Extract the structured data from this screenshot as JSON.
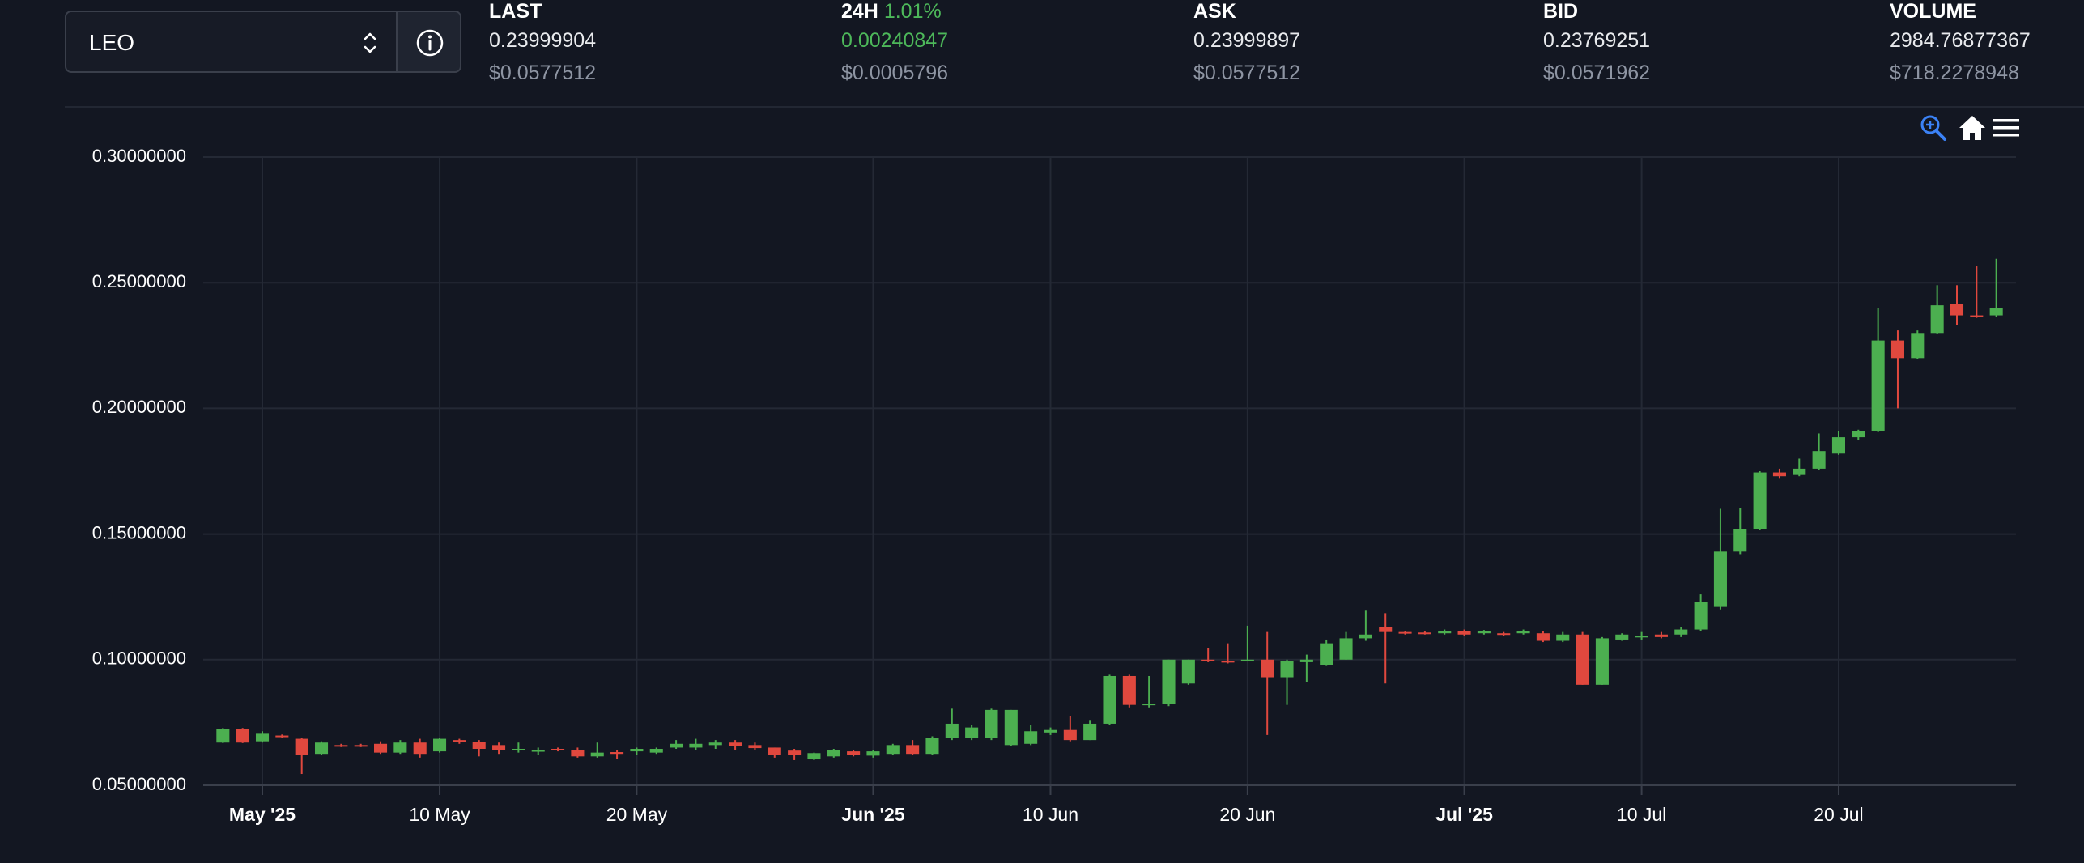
{
  "header": {
    "symbol": "LEO",
    "stats": [
      {
        "label": "LAST",
        "value": "0.23999904",
        "usd": "$0.0577512"
      },
      {
        "label": "24H",
        "change": "1.01%",
        "value": "0.00240847",
        "usd": "$0.0005796"
      },
      {
        "label": "ASK",
        "value": "0.23999897",
        "usd": "$0.0577512"
      },
      {
        "label": "BID",
        "value": "0.23769251",
        "usd": "$0.0571962"
      },
      {
        "label": "VOLUME",
        "value": "2984.76877367",
        "usd": "$718.2278948"
      }
    ]
  },
  "chart_data": {
    "type": "candlestick",
    "x": [
      "2025-04-29",
      "2025-04-30",
      "2025-05-01",
      "2025-05-02",
      "2025-05-03",
      "2025-05-04",
      "2025-05-05",
      "2025-05-06",
      "2025-05-07",
      "2025-05-08",
      "2025-05-09",
      "2025-05-10",
      "2025-05-11",
      "2025-05-12",
      "2025-05-13",
      "2025-05-14",
      "2025-05-15",
      "2025-05-16",
      "2025-05-17",
      "2025-05-18",
      "2025-05-19",
      "2025-05-20",
      "2025-05-21",
      "2025-05-22",
      "2025-05-23",
      "2025-05-24",
      "2025-05-25",
      "2025-05-26",
      "2025-05-27",
      "2025-05-28",
      "2025-05-29",
      "2025-05-30",
      "2025-05-31",
      "2025-06-01",
      "2025-06-02",
      "2025-06-03",
      "2025-06-04",
      "2025-06-05",
      "2025-06-06",
      "2025-06-07",
      "2025-06-08",
      "2025-06-09",
      "2025-06-10",
      "2025-06-11",
      "2025-06-12",
      "2025-06-13",
      "2025-06-14",
      "2025-06-15",
      "2025-06-16",
      "2025-06-17",
      "2025-06-18",
      "2025-06-19",
      "2025-06-20",
      "2025-06-21",
      "2025-06-22",
      "2025-06-23",
      "2025-06-24",
      "2025-06-25",
      "2025-06-26",
      "2025-06-27",
      "2025-06-28",
      "2025-06-29",
      "2025-06-30",
      "2025-07-01",
      "2025-07-02",
      "2025-07-03",
      "2025-07-04",
      "2025-07-05",
      "2025-07-06",
      "2025-07-07",
      "2025-07-08",
      "2025-07-09",
      "2025-07-10",
      "2025-07-11",
      "2025-07-12",
      "2025-07-13",
      "2025-07-14",
      "2025-07-15",
      "2025-07-16",
      "2025-07-17",
      "2025-07-18",
      "2025-07-19",
      "2025-07-20",
      "2025-07-21",
      "2025-07-22",
      "2025-07-23",
      "2025-07-24",
      "2025-07-25",
      "2025-07-26",
      "2025-07-27",
      "2025-07-28"
    ],
    "open": [
      0.067,
      0.0725,
      0.0675,
      0.0698,
      0.0685,
      0.0625,
      0.066,
      0.066,
      0.0665,
      0.063,
      0.067,
      0.0635,
      0.068,
      0.0672,
      0.066,
      0.064,
      0.0635,
      0.0645,
      0.064,
      0.0615,
      0.0632,
      0.0635,
      0.063,
      0.065,
      0.065,
      0.066,
      0.067,
      0.066,
      0.065,
      0.0638,
      0.0603,
      0.0615,
      0.0635,
      0.0618,
      0.0625,
      0.066,
      0.0625,
      0.069,
      0.069,
      0.069,
      0.066,
      0.0665,
      0.071,
      0.072,
      0.068,
      0.0745,
      0.0935,
      0.082,
      0.0825,
      0.0905,
      0.1,
      0.0995,
      0.0995,
      0.1,
      0.093,
      0.099,
      0.098,
      0.1,
      0.1085,
      0.113,
      0.111,
      0.1108,
      0.1105,
      0.1115,
      0.1105,
      0.1105,
      0.1105,
      0.1105,
      0.1075,
      0.11,
      0.09,
      0.108,
      0.109,
      0.11,
      0.11,
      0.112,
      0.121,
      0.143,
      0.152,
      0.1745,
      0.1735,
      0.176,
      0.182,
      0.1885,
      0.191,
      0.227,
      0.22,
      0.23,
      0.2415,
      0.237,
      0.237
    ],
    "high": [
      0.0728,
      0.0728,
      0.0715,
      0.0702,
      0.069,
      0.0675,
      0.0665,
      0.0665,
      0.0675,
      0.068,
      0.0685,
      0.069,
      0.0685,
      0.068,
      0.067,
      0.067,
      0.065,
      0.065,
      0.065,
      0.067,
      0.064,
      0.065,
      0.065,
      0.068,
      0.0685,
      0.068,
      0.068,
      0.067,
      0.065,
      0.0645,
      0.063,
      0.0645,
      0.064,
      0.064,
      0.0665,
      0.068,
      0.0695,
      0.0805,
      0.074,
      0.0805,
      0.08,
      0.074,
      0.073,
      0.0775,
      0.076,
      0.094,
      0.094,
      0.0935,
      0.1,
      0.1,
      0.1045,
      0.1065,
      0.1135,
      0.111,
      0.1,
      0.102,
      0.108,
      0.111,
      0.1195,
      0.1185,
      0.1115,
      0.1112,
      0.112,
      0.112,
      0.1118,
      0.111,
      0.112,
      0.1115,
      0.111,
      0.111,
      0.109,
      0.1105,
      0.111,
      0.111,
      0.113,
      0.126,
      0.16,
      0.1605,
      0.175,
      0.176,
      0.18,
      0.19,
      0.191,
      0.1915,
      0.24,
      0.231,
      0.231,
      0.249,
      0.249,
      0.2565,
      0.2595
    ],
    "low": [
      0.0668,
      0.0668,
      0.067,
      0.0688,
      0.0545,
      0.062,
      0.0652,
      0.0652,
      0.0625,
      0.0625,
      0.061,
      0.063,
      0.0665,
      0.0615,
      0.0625,
      0.063,
      0.062,
      0.0635,
      0.061,
      0.061,
      0.0605,
      0.062,
      0.0625,
      0.0645,
      0.064,
      0.0645,
      0.064,
      0.064,
      0.061,
      0.06,
      0.06,
      0.061,
      0.0615,
      0.061,
      0.062,
      0.062,
      0.062,
      0.068,
      0.068,
      0.068,
      0.0655,
      0.066,
      0.07,
      0.0675,
      0.068,
      0.074,
      0.081,
      0.081,
      0.0815,
      0.09,
      0.099,
      0.0985,
      0.0995,
      0.07,
      0.082,
      0.091,
      0.0975,
      0.1,
      0.1075,
      0.0905,
      0.11,
      0.11,
      0.11,
      0.1095,
      0.11,
      0.1095,
      0.11,
      0.107,
      0.107,
      0.09,
      0.09,
      0.1075,
      0.108,
      0.1085,
      0.109,
      0.1115,
      0.12,
      0.142,
      0.1515,
      0.172,
      0.173,
      0.1755,
      0.1815,
      0.1875,
      0.1905,
      0.2,
      0.2195,
      0.2295,
      0.233,
      0.236,
      0.2365
    ],
    "close": [
      0.0725,
      0.067,
      0.0705,
      0.0692,
      0.062,
      0.067,
      0.0657,
      0.0655,
      0.063,
      0.067,
      0.0625,
      0.0685,
      0.0672,
      0.0645,
      0.064,
      0.0645,
      0.064,
      0.064,
      0.0615,
      0.063,
      0.0625,
      0.0645,
      0.0645,
      0.0665,
      0.0665,
      0.067,
      0.0655,
      0.0648,
      0.062,
      0.062,
      0.0628,
      0.064,
      0.062,
      0.0635,
      0.066,
      0.0625,
      0.069,
      0.0745,
      0.073,
      0.08,
      0.08,
      0.0715,
      0.072,
      0.068,
      0.0745,
      0.0935,
      0.082,
      0.0825,
      0.1,
      0.1,
      0.0995,
      0.099,
      0.1,
      0.093,
      0.0995,
      0.1,
      0.1065,
      0.1085,
      0.11,
      0.111,
      0.1105,
      0.1103,
      0.1115,
      0.11,
      0.1115,
      0.11,
      0.1115,
      0.1075,
      0.11,
      0.09,
      0.1085,
      0.11,
      0.1095,
      0.109,
      0.112,
      0.123,
      0.143,
      0.152,
      0.1745,
      0.173,
      0.176,
      0.183,
      0.1885,
      0.191,
      0.227,
      0.22,
      0.23,
      0.241,
      0.237,
      0.2365,
      0.24
    ],
    "up_color": "#4caf50",
    "down_color": "#e0483e",
    "xlim": [
      "2025-04-28",
      "2025-07-29"
    ],
    "xticks": [
      {
        "value": "2025-05-01",
        "label": "May '25"
      },
      {
        "value": "2025-05-10",
        "label": "10 May"
      },
      {
        "value": "2025-05-20",
        "label": "20 May"
      },
      {
        "value": "2025-06-01",
        "label": "Jun '25"
      },
      {
        "value": "2025-06-10",
        "label": "10 Jun"
      },
      {
        "value": "2025-06-20",
        "label": "20 Jun"
      },
      {
        "value": "2025-07-01",
        "label": "Jul '25"
      },
      {
        "value": "2025-07-10",
        "label": "10 Jul"
      },
      {
        "value": "2025-07-20",
        "label": "20 Jul"
      }
    ],
    "ylim": [
      0.05,
      0.3
    ],
    "yticks": [
      {
        "value": 0.05,
        "label": "0.05000000"
      },
      {
        "value": 0.1,
        "label": "0.10000000"
      },
      {
        "value": 0.15,
        "label": "0.15000000"
      },
      {
        "value": 0.2,
        "label": "0.20000000"
      },
      {
        "value": 0.25,
        "label": "0.25000000"
      },
      {
        "value": 0.3,
        "label": "0.30000000"
      }
    ],
    "grid": true
  }
}
